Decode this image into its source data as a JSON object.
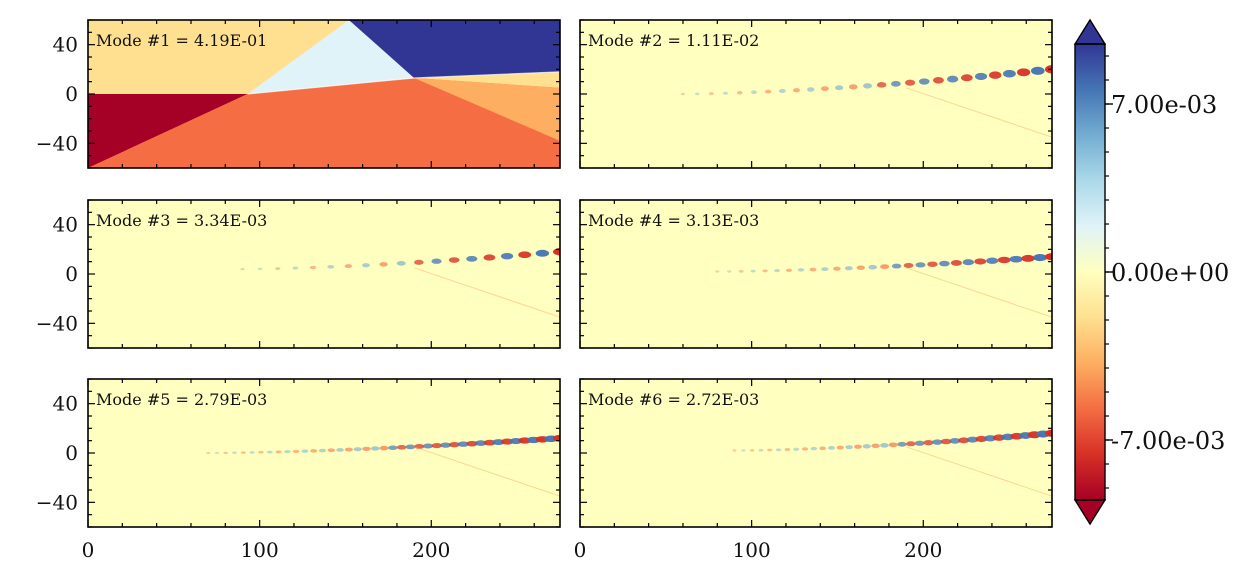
{
  "chart_data": {
    "type": "heatmap",
    "title": "",
    "xlim": [
      0,
      275
    ],
    "ylim": [
      -60,
      60
    ],
    "xticks": [
      0,
      100,
      200
    ],
    "yticks": [
      -40,
      0,
      40
    ],
    "tick_labels": {
      "x": [
        "0",
        "100",
        "200"
      ],
      "y": [
        "−40",
        "0",
        "40"
      ]
    },
    "colormap": "RdYlBu",
    "colors": {
      "neg": [
        "#a50026",
        "#d73027",
        "#f46d43",
        "#fdae61",
        "#fee090"
      ],
      "zero": "#ffffbf",
      "pos": [
        "#e0f3f8",
        "#abd9e9",
        "#74add1",
        "#4575b4",
        "#313695"
      ]
    },
    "colorbar": {
      "min": -0.0095,
      "max": 0.0095,
      "ticks": [
        0.007,
        0,
        -0.007
      ],
      "tick_labels": [
        "7.00e-03",
        "0.00e+00",
        "-7.00e-03"
      ],
      "extend": "both"
    },
    "panels": [
      {
        "label": "Mode #1 = 4.19E-01",
        "mode": 1,
        "value": 0.419
      },
      {
        "label": "Mode #2 = 1.11E-02",
        "mode": 2,
        "value": 0.0111
      },
      {
        "label": "Mode #3 = 3.34E-03",
        "mode": 3,
        "value": 0.00334
      },
      {
        "label": "Mode #4 = 3.13E-03",
        "mode": 4,
        "value": 0.00313
      },
      {
        "label": "Mode #5 = 2.79E-03",
        "mode": 5,
        "value": 0.00279
      },
      {
        "label": "Mode #6 = 2.72E-03",
        "mode": 6,
        "value": 0.00272
      }
    ]
  }
}
